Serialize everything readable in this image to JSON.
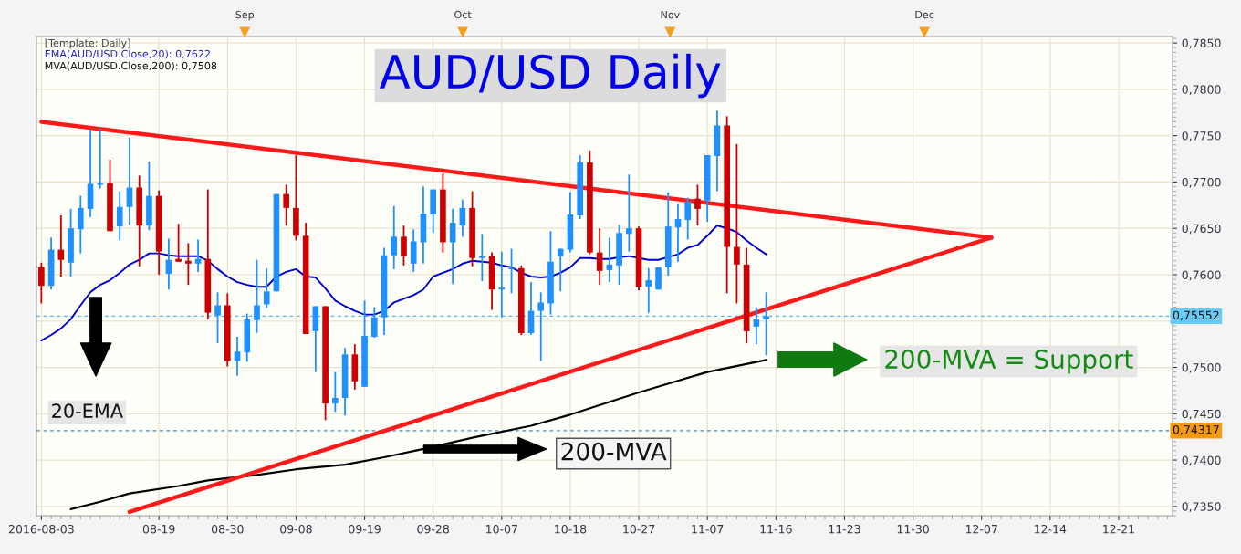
{
  "chart_data": {
    "type": "candlestick",
    "title": "AUD/USD Daily",
    "categories": [
      "2016-08-03",
      null,
      null,
      null,
      null,
      null,
      null,
      null,
      null,
      null,
      null,
      null,
      "08-19",
      null,
      null,
      null,
      null,
      null,
      null,
      "08-30",
      null,
      null,
      null,
      null,
      null,
      null,
      "09-08",
      null,
      null,
      null,
      null,
      null,
      null,
      "09-19",
      null,
      null,
      null,
      null,
      null,
      null,
      "09-28",
      null,
      null,
      null,
      null,
      null,
      null,
      "10-07",
      null,
      null,
      null,
      null,
      null,
      null,
      "10-18",
      null,
      null,
      null,
      null,
      null,
      null,
      "10-27",
      null,
      null,
      null,
      null,
      null,
      null,
      "11-07",
      null,
      null,
      null,
      null,
      null,
      null,
      "11-16",
      null,
      null,
      null,
      null,
      null,
      null,
      "11-23",
      null,
      null,
      null,
      null,
      null,
      null,
      "11-30",
      null,
      null,
      null,
      null,
      null,
      null,
      "12-07",
      null,
      null,
      null,
      null,
      null,
      null,
      "12-14",
      null,
      null,
      null,
      null,
      null,
      null,
      "12-21",
      null,
      null,
      null,
      null,
      null
    ],
    "series": [
      {
        "ohlc": [
          [
            0.7608,
            0.7613,
            0.7569,
            0.7588
          ],
          [
            0.7588,
            0.764,
            0.7584,
            0.7627
          ],
          [
            0.7627,
            0.7664,
            0.7598,
            0.7616
          ],
          [
            0.7613,
            0.7671,
            0.7598,
            0.765
          ],
          [
            0.7649,
            0.7685,
            0.7623,
            0.7672
          ],
          [
            0.7671,
            0.7757,
            0.7662,
            0.7698
          ],
          [
            0.7697,
            0.7758,
            0.7693,
            0.7699
          ],
          [
            0.7699,
            0.7724,
            0.7647,
            0.7647
          ],
          [
            0.7652,
            0.769,
            0.7637,
            0.7673
          ],
          [
            0.7673,
            0.7748,
            0.7654,
            0.7694
          ],
          [
            0.7694,
            0.7707,
            0.7609,
            0.7653
          ],
          [
            0.7653,
            0.7722,
            0.7648,
            0.7685
          ],
          [
            0.7685,
            0.7691,
            0.76,
            0.7625
          ],
          [
            0.7601,
            0.7639,
            0.7584,
            0.7616
          ],
          [
            0.7617,
            0.7655,
            0.7614,
            0.7614
          ],
          [
            0.7615,
            0.7634,
            0.7589,
            0.7612
          ],
          [
            0.7612,
            0.7638,
            0.7603,
            0.7617
          ],
          [
            0.7617,
            0.7692,
            0.7552,
            0.7559
          ],
          [
            0.7556,
            0.7581,
            0.7526,
            0.7567
          ],
          [
            0.7567,
            0.758,
            0.7501,
            0.7507
          ],
          [
            0.7507,
            0.7533,
            0.7491,
            0.7517
          ],
          [
            0.7516,
            0.7558,
            0.7506,
            0.7552
          ],
          [
            0.7551,
            0.7616,
            0.7537,
            0.7567
          ],
          [
            0.7568,
            0.7607,
            0.7564,
            0.7582
          ],
          [
            0.7582,
            0.7687,
            0.7582,
            0.7687
          ],
          [
            0.7687,
            0.7697,
            0.7653,
            0.7672
          ],
          [
            0.7672,
            0.7729,
            0.7637,
            0.7642
          ],
          [
            0.7642,
            0.7656,
            0.7536,
            0.7536
          ],
          [
            0.7539,
            0.7566,
            0.7495,
            0.7566
          ],
          [
            0.7566,
            0.7566,
            0.7443,
            0.7461
          ],
          [
            0.7461,
            0.7495,
            0.7452,
            0.7467
          ],
          [
            0.7467,
            0.7521,
            0.7448,
            0.7514
          ],
          [
            0.7514,
            0.7525,
            0.7476,
            0.7485
          ],
          [
            0.7479,
            0.7572,
            0.7479,
            0.7534
          ],
          [
            0.7533,
            0.7565,
            0.7532,
            0.7554
          ],
          [
            0.7554,
            0.7629,
            0.7535,
            0.7621
          ],
          [
            0.7621,
            0.7674,
            0.7606,
            0.7641
          ],
          [
            0.7641,
            0.7653,
            0.761,
            0.762
          ],
          [
            0.7612,
            0.7649,
            0.7603,
            0.7636
          ],
          [
            0.7635,
            0.7695,
            0.7612,
            0.7666
          ],
          [
            0.7665,
            0.7692,
            0.7645,
            0.7692
          ],
          [
            0.7692,
            0.7709,
            0.7624,
            0.7635
          ],
          [
            0.7635,
            0.7671,
            0.759,
            0.7656
          ],
          [
            0.7653,
            0.7681,
            0.7641,
            0.7672
          ],
          [
            0.7672,
            0.769,
            0.7609,
            0.7618
          ],
          [
            0.7618,
            0.7644,
            0.7593,
            0.762
          ],
          [
            0.762,
            0.7624,
            0.7562,
            0.7584
          ],
          [
            0.7584,
            0.7625,
            0.7554,
            0.7586
          ],
          [
            0.7606,
            0.7628,
            0.758,
            0.7607
          ],
          [
            0.7607,
            0.761,
            0.7535,
            0.7537
          ],
          [
            0.7537,
            0.7592,
            0.7535,
            0.7561
          ],
          [
            0.7561,
            0.7581,
            0.7507,
            0.757
          ],
          [
            0.7569,
            0.7647,
            0.7557,
            0.7614
          ],
          [
            0.762,
            0.7628,
            0.7582,
            0.7628
          ],
          [
            0.7627,
            0.7689,
            0.7624,
            0.7665
          ],
          [
            0.7664,
            0.7729,
            0.766,
            0.7721
          ],
          [
            0.7721,
            0.7734,
            0.7622,
            0.7624
          ],
          [
            0.7624,
            0.765,
            0.7589,
            0.7604
          ],
          [
            0.7605,
            0.764,
            0.7592,
            0.7611
          ],
          [
            0.761,
            0.7654,
            0.7589,
            0.7645
          ],
          [
            0.7644,
            0.7708,
            0.7625,
            0.765
          ],
          [
            0.765,
            0.7652,
            0.7583,
            0.7587
          ],
          [
            0.7587,
            0.7607,
            0.7559,
            0.7594
          ],
          [
            0.7584,
            0.7608,
            0.7584,
            0.7608
          ],
          [
            0.7608,
            0.7689,
            0.7599,
            0.7652
          ],
          [
            0.7651,
            0.7677,
            0.7614,
            0.766
          ],
          [
            0.7659,
            0.7683,
            0.7638,
            0.7679
          ],
          [
            0.7682,
            0.7697,
            0.7653,
            0.7671
          ],
          [
            0.768,
            0.7729,
            0.7657,
            0.7729
          ],
          [
            0.7728,
            0.7777,
            0.769,
            0.7761
          ],
          [
            0.7761,
            0.7771,
            0.758,
            0.763
          ],
          [
            0.763,
            0.7741,
            0.7569,
            0.7611
          ],
          [
            0.7611,
            0.7629,
            0.7526,
            0.7539
          ],
          [
            0.7544,
            0.7565,
            0.7525,
            0.7552
          ],
          [
            0.7552,
            0.7581,
            0.7513,
            0.7555
          ],
          null,
          null,
          null,
          null,
          null,
          null,
          null,
          null,
          null,
          null,
          null,
          null,
          null,
          null,
          null,
          null,
          null,
          null,
          null,
          null,
          null,
          null,
          null,
          null,
          null,
          null,
          null,
          null,
          null,
          null,
          null,
          null,
          null,
          null,
          null,
          null,
          null,
          null,
          null,
          null,
          null
        ],
        "colors": [
          "#cc0000",
          "#1e90ff",
          "#cc0000",
          "#1e90ff",
          "#1e90ff",
          "#1e90ff",
          "#1e90ff",
          "#cc0000",
          "#1e90ff",
          "#1e90ff",
          "#cc0000",
          "#1e90ff",
          "#cc0000",
          "#1e90ff",
          "#cc0000",
          "#cc0000",
          "#1e90ff",
          "#cc0000",
          "#1e90ff",
          "#cc0000",
          "#1e90ff",
          "#1e90ff",
          "#1e90ff",
          "#1e90ff",
          "#1e90ff",
          "#cc0000",
          "#cc0000",
          "#cc0000",
          "#1e90ff",
          "#cc0000",
          "#1e90ff",
          "#1e90ff",
          "#cc0000",
          "#1e90ff",
          "#1e90ff",
          "#1e90ff",
          "#1e90ff",
          "#cc0000",
          "#1e90ff",
          "#1e90ff",
          "#1e90ff",
          "#cc0000",
          "#1e90ff",
          "#1e90ff",
          "#cc0000",
          "#1e90ff",
          "#cc0000",
          "#1e90ff",
          "#1e90ff",
          "#cc0000",
          "#1e90ff",
          "#1e90ff",
          "#1e90ff",
          "#1e90ff",
          "#1e90ff",
          "#1e90ff",
          "#cc0000",
          "#cc0000",
          "#1e90ff",
          "#1e90ff",
          "#1e90ff",
          "#cc0000",
          "#1e90ff",
          "#1e90ff",
          "#1e90ff",
          "#1e90ff",
          "#1e90ff",
          "#cc0000",
          "#1e90ff",
          "#1e90ff",
          "#cc0000",
          "#cc0000",
          "#cc0000",
          "#1e90ff",
          "#1e90ff",
          null,
          null,
          null,
          null,
          null,
          null,
          null,
          null,
          null,
          null,
          null,
          null,
          null,
          null,
          null,
          null,
          null,
          null,
          null,
          null,
          null,
          null,
          null,
          null,
          null,
          null,
          null,
          null,
          null,
          null,
          null,
          null,
          null,
          null,
          null,
          null,
          null,
          null,
          null,
          null,
          null
        ]
      },
      {
        "type": "line",
        "color": "#0000cc",
        "values": [
          0.7529,
          0.7535,
          0.7542,
          0.7552,
          0.7567,
          0.7581,
          0.7589,
          0.7594,
          0.7602,
          0.7611,
          0.7616,
          0.7623,
          0.7623,
          0.7621,
          0.762,
          0.762,
          0.762,
          0.7615,
          0.7606,
          0.7598,
          0.7592,
          0.7589,
          0.7587,
          0.7587,
          0.7598,
          0.7603,
          0.7606,
          0.7598,
          0.7597,
          0.7585,
          0.7572,
          0.7566,
          0.7561,
          0.7557,
          0.7557,
          0.7561,
          0.757,
          0.7574,
          0.7578,
          0.7584,
          0.7598,
          0.7602,
          0.7606,
          0.7612,
          0.7615,
          0.7614,
          0.7613,
          0.761,
          0.7608,
          0.7602,
          0.7598,
          0.7597,
          0.7598,
          0.7602,
          0.7608,
          0.7618,
          0.7618,
          0.7617,
          0.7617,
          0.7619,
          0.762,
          0.7618,
          0.7616,
          0.7616,
          0.7619,
          0.7622,
          0.7629,
          0.7632,
          0.7642,
          0.7653,
          0.765,
          0.7646,
          0.7637,
          0.7629,
          0.7622,
          null,
          null,
          null,
          null,
          null,
          null,
          null,
          null,
          null,
          null,
          null,
          null,
          null,
          null,
          null,
          null,
          null,
          null,
          null,
          null,
          null,
          null,
          null,
          null,
          null,
          null,
          null,
          null,
          null,
          null,
          null,
          null,
          null,
          null,
          null,
          null,
          null,
          null,
          null,
          null,
          null
        ]
      },
      {
        "type": "line",
        "color": "#000000",
        "values": [
          null,
          null,
          null,
          0.7347,
          null,
          null,
          0.7355,
          null,
          null,
          0.7364,
          null,
          null,
          null,
          null,
          0.7372,
          null,
          null,
          0.7378,
          null,
          null,
          null,
          null,
          0.7384,
          null,
          null,
          null,
          0.739,
          null,
          null,
          null,
          null,
          0.7395,
          null,
          null,
          null,
          0.7403,
          null,
          null,
          null,
          0.7412,
          null,
          null,
          null,
          null,
          0.7424,
          null,
          null,
          null,
          null,
          null,
          0.7437,
          null,
          null,
          null,
          0.7449,
          null,
          null,
          null,
          null,
          null,
          null,
          0.7473,
          null,
          null,
          null,
          null,
          null,
          null,
          0.7495,
          null,
          null,
          null,
          null,
          null,
          0.7508,
          null,
          null,
          null,
          null,
          null,
          null,
          null,
          null,
          null,
          null,
          null,
          null,
          null,
          null,
          null,
          null,
          null,
          null,
          null,
          null,
          null,
          null,
          null,
          null,
          null,
          null,
          null,
          null,
          null,
          null,
          null,
          null,
          null,
          null,
          null,
          null,
          null,
          null,
          null,
          null,
          null
        ]
      },
      {
        "type": "line",
        "color": "#ff1a1a",
        "values": [
          0.7765,
          null,
          null,
          null,
          null,
          null,
          null,
          null,
          null,
          null,
          null,
          null,
          null,
          null,
          null,
          null,
          null,
          null,
          null,
          null,
          null,
          null,
          null,
          null,
          null,
          null,
          null,
          null,
          null,
          null,
          null,
          null,
          null,
          null,
          null,
          null,
          null,
          null,
          null,
          null,
          null,
          null,
          null,
          null,
          null,
          null,
          null,
          null,
          null,
          null,
          null,
          null,
          null,
          null,
          null,
          null,
          null,
          null,
          null,
          null,
          null,
          null,
          null,
          null,
          null,
          null,
          null,
          null,
          null,
          null,
          null,
          null,
          null,
          null,
          null,
          null,
          null,
          null,
          null,
          null,
          null,
          null,
          null,
          null,
          null,
          null,
          null,
          null,
          null,
          null,
          null,
          null,
          null,
          null,
          null,
          null,
          null,
          0.764,
          null,
          null,
          null,
          null,
          null,
          null,
          null,
          null,
          null,
          null,
          null,
          null,
          null,
          null,
          null,
          null,
          null,
          null
        ]
      },
      {
        "type": "line",
        "color": "#ff1a1a",
        "values": [
          null,
          null,
          null,
          null,
          null,
          null,
          null,
          null,
          null,
          0.7344,
          null,
          null,
          null,
          null,
          null,
          null,
          null,
          null,
          null,
          null,
          null,
          null,
          null,
          null,
          null,
          null,
          null,
          null,
          null,
          null,
          null,
          null,
          null,
          null,
          null,
          null,
          null,
          null,
          null,
          null,
          null,
          null,
          null,
          null,
          null,
          null,
          null,
          null,
          null,
          null,
          null,
          null,
          null,
          null,
          null,
          null,
          null,
          null,
          null,
          null,
          null,
          null,
          null,
          null,
          null,
          null,
          null,
          null,
          null,
          null,
          null,
          null,
          null,
          null,
          null,
          null,
          null,
          null,
          null,
          null,
          null,
          null,
          null,
          null,
          null,
          null,
          null,
          null,
          null,
          null,
          null,
          null,
          null,
          null,
          null,
          null,
          null,
          0.764,
          null,
          null,
          null,
          null,
          null,
          null,
          null,
          null,
          null,
          null,
          null,
          null,
          null,
          null,
          null,
          null,
          null,
          null
        ]
      }
    ],
    "ylim": [
      0.734,
      0.7857
    ],
    "yticks": [
      {
        "value": 0.735,
        "label": "0,7350"
      },
      {
        "value": 0.74,
        "label": "0,7400"
      },
      {
        "value": 0.745,
        "label": "0,7450"
      },
      {
        "value": 0.75,
        "label": "0,7500"
      },
      {
        "value": 0.755,
        "label": null
      },
      {
        "value": 0.76,
        "label": "0,7600"
      },
      {
        "value": 0.765,
        "label": "0,7650"
      },
      {
        "value": 0.77,
        "label": "0,7700"
      },
      {
        "value": 0.775,
        "label": "0,7750"
      },
      {
        "value": 0.78,
        "label": "0,7800"
      },
      {
        "value": 0.785,
        "label": "0,7850"
      }
    ],
    "grid": true,
    "ref_lines": [
      {
        "axis": "y",
        "value": 0.75552,
        "label": "0,75552",
        "color": "#5ab4e6",
        "line_style": "dashed"
      },
      {
        "axis": "y",
        "value": 0.74317,
        "label": "0,74317",
        "color": "#3a8ccc",
        "line_style": "dashed"
      }
    ],
    "annotations": [
      "[Template: Daily]",
      "EMA(AUD/USD.Close,20): 0,7622",
      "MVA(AUD/USD.Close,200): 0,7508",
      "20-EMA",
      "200-MVA",
      "200-MVA = Support",
      "Sep",
      "Oct",
      "Nov",
      "Dec"
    ]
  }
}
